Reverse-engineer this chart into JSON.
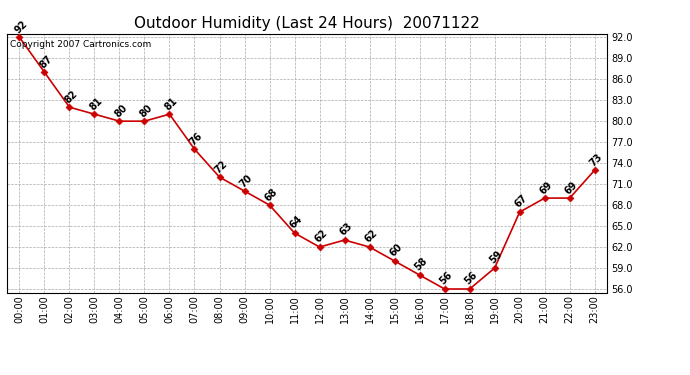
{
  "title": "Outdoor Humidity (Last 24 Hours)  20071122",
  "copyright_text": "Copyright 2007 Cartronics.com",
  "hours": [
    "00:00",
    "01:00",
    "02:00",
    "03:00",
    "04:00",
    "05:00",
    "06:00",
    "07:00",
    "08:00",
    "09:00",
    "10:00",
    "11:00",
    "12:00",
    "13:00",
    "14:00",
    "15:00",
    "16:00",
    "17:00",
    "18:00",
    "19:00",
    "20:00",
    "21:00",
    "22:00",
    "23:00"
  ],
  "values": [
    92,
    87,
    82,
    81,
    80,
    80,
    81,
    76,
    72,
    70,
    68,
    64,
    62,
    63,
    62,
    60,
    58,
    56,
    56,
    59,
    67,
    69,
    69,
    73
  ],
  "ylim_min": 55.5,
  "ylim_max": 92.5,
  "yticks": [
    56.0,
    59.0,
    62.0,
    65.0,
    68.0,
    71.0,
    74.0,
    77.0,
    80.0,
    83.0,
    86.0,
    89.0,
    92.0
  ],
  "line_color": "#cc0000",
  "marker_color": "#cc0000",
  "bg_color": "#ffffff",
  "grid_color": "#aaaaaa",
  "title_fontsize": 11,
  "label_fontsize": 7,
  "tick_fontsize": 7,
  "copyright_fontsize": 6.5
}
